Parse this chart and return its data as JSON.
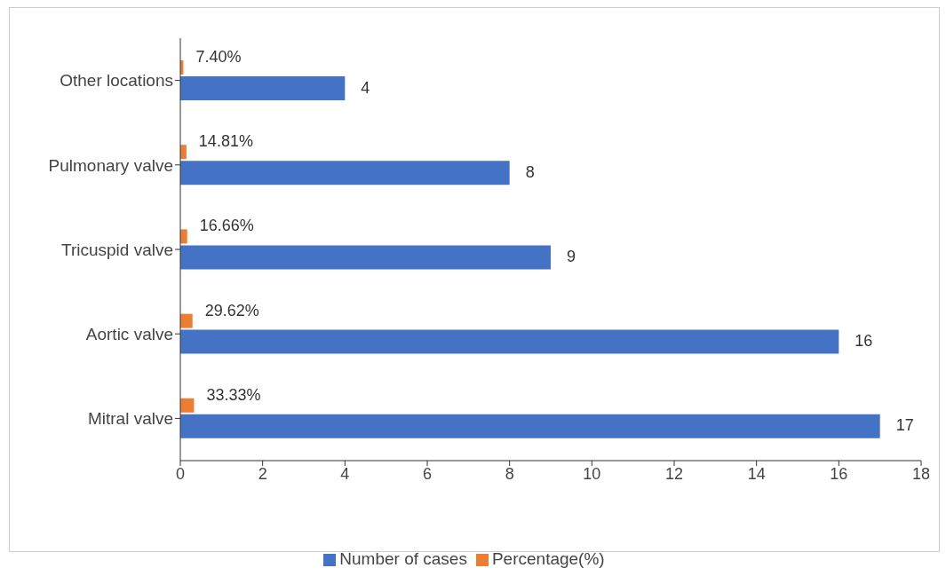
{
  "chart_data": {
    "type": "bar",
    "orientation": "horizontal",
    "categories": [
      "Other locations",
      "Pulmonary valve",
      "Tricuspid valve",
      "Aortic valve",
      "Mitral valve"
    ],
    "series": [
      {
        "name": "Percentage(%)",
        "color": "#ed7d31",
        "values": [
          0.074,
          0.1481,
          0.1666,
          0.2962,
          0.3333
        ],
        "value_labels": [
          "7.40%",
          "14.81%",
          "16.66%",
          "29.62%",
          "33.33%"
        ]
      },
      {
        "name": "Number of cases",
        "color": "#4472c4",
        "values": [
          4,
          8,
          9,
          16,
          17
        ],
        "value_labels": [
          "4",
          "8",
          "9",
          "16",
          "17"
        ]
      }
    ],
    "xlim": [
      0,
      18
    ],
    "xticks": [
      0,
      2,
      4,
      6,
      8,
      10,
      12,
      14,
      16,
      18
    ],
    "legend": "bottom"
  }
}
